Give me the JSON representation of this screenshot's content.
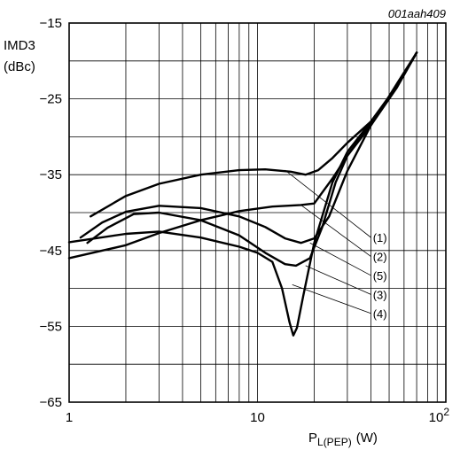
{
  "chart_data": {
    "type": "line",
    "figure_code": "001aah409",
    "ylabel_line1": "IMD3",
    "ylabel_line2": "(dBc)",
    "xlabel_main": "P",
    "xlabel_sub": "L(PEP)",
    "xlabel_unit": "(W)",
    "x_scale": "log",
    "xlim": [
      1,
      100
    ],
    "ylim": [
      -65,
      -15
    ],
    "grid": true,
    "x_ticks": [
      {
        "value": 1,
        "label": "1"
      },
      {
        "value": 10,
        "label": "10"
      },
      {
        "value": 100,
        "label": "10",
        "sup": "2"
      }
    ],
    "y_ticks": [
      {
        "value": -15,
        "label": "−15"
      },
      {
        "value": -25,
        "label": "−25"
      },
      {
        "value": -35,
        "label": "−35"
      },
      {
        "value": -45,
        "label": "−45"
      },
      {
        "value": -55,
        "label": "−55"
      },
      {
        "value": -65,
        "label": "−65"
      }
    ],
    "series": [
      {
        "name": "(1)",
        "points": [
          [
            1.3,
            -40.5
          ],
          [
            2,
            -37.8
          ],
          [
            3,
            -36.2
          ],
          [
            5,
            -35.0
          ],
          [
            8,
            -34.4
          ],
          [
            11,
            -34.3
          ],
          [
            15,
            -34.6
          ],
          [
            18,
            -35.0
          ],
          [
            21,
            -34.4
          ],
          [
            25,
            -32.8
          ],
          [
            30,
            -30.8
          ],
          [
            40,
            -28.0
          ],
          [
            50,
            -24.8
          ],
          [
            60,
            -21.8
          ],
          [
            70,
            -18.9
          ]
        ]
      },
      {
        "name": "(2)",
        "points": [
          [
            1.15,
            -43.3
          ],
          [
            1.5,
            -41.3
          ],
          [
            2,
            -39.9
          ],
          [
            3,
            -39.1
          ],
          [
            5,
            -39.4
          ],
          [
            8,
            -40.5
          ],
          [
            11,
            -41.9
          ],
          [
            14,
            -43.4
          ],
          [
            17,
            -44.0
          ],
          [
            20,
            -43.4
          ],
          [
            24,
            -40.5
          ],
          [
            30,
            -34.5
          ],
          [
            40,
            -28.5
          ],
          [
            55,
            -23.0
          ],
          [
            70,
            -18.9
          ]
        ]
      },
      {
        "name": "(3)",
        "points": [
          [
            1,
            -46.0
          ],
          [
            2,
            -44.3
          ],
          [
            3,
            -42.7
          ],
          [
            5,
            -41.0
          ],
          [
            8,
            -39.8
          ],
          [
            12,
            -39.2
          ],
          [
            17,
            -39.0
          ],
          [
            20,
            -38.8
          ],
          [
            25,
            -35.5
          ],
          [
            30,
            -32.5
          ],
          [
            40,
            -28.5
          ],
          [
            55,
            -23.5
          ],
          [
            70,
            -18.9
          ]
        ]
      },
      {
        "name": "(4)",
        "points": [
          [
            1,
            -43.9
          ],
          [
            2,
            -42.8
          ],
          [
            3,
            -42.5
          ],
          [
            5,
            -43.3
          ],
          [
            8,
            -44.5
          ],
          [
            10,
            -45.3
          ],
          [
            12,
            -46.5
          ],
          [
            13.5,
            -50.0
          ],
          [
            14.8,
            -54.5
          ],
          [
            15.5,
            -56.2
          ],
          [
            16.2,
            -55.2
          ],
          [
            17.5,
            -51.0
          ],
          [
            20,
            -44.0
          ],
          [
            25,
            -36.0
          ],
          [
            30,
            -32.0
          ],
          [
            40,
            -28.0
          ],
          [
            55,
            -23.3
          ],
          [
            70,
            -18.9
          ]
        ]
      },
      {
        "name": "(5)",
        "points": [
          [
            1.25,
            -44.0
          ],
          [
            1.6,
            -42.0
          ],
          [
            2.2,
            -40.2
          ],
          [
            3,
            -40.0
          ],
          [
            5,
            -41.0
          ],
          [
            8,
            -43.0
          ],
          [
            11,
            -45.3
          ],
          [
            14,
            -46.8
          ],
          [
            16,
            -47.0
          ],
          [
            19,
            -46.0
          ],
          [
            22,
            -42.0
          ],
          [
            26,
            -36.0
          ],
          [
            30,
            -32.5
          ],
          [
            40,
            -28.2
          ],
          [
            55,
            -23.2
          ],
          [
            70,
            -18.9
          ]
        ]
      }
    ],
    "callouts": [
      {
        "label": "(1)",
        "anchor": [
          14.0,
          -34.4
        ],
        "text_pos": [
          41,
          -43.3
        ]
      },
      {
        "label": "(2)",
        "anchor": [
          17.0,
          -39.0
        ],
        "text_pos": [
          41,
          -45.8
        ]
      },
      {
        "label": "(5)",
        "anchor": [
          19.0,
          -44.0
        ],
        "text_pos": [
          41,
          -48.3
        ]
      },
      {
        "label": "(3)",
        "anchor": [
          18.0,
          -47.0
        ],
        "text_pos": [
          41,
          -50.8
        ]
      },
      {
        "label": "(4)",
        "anchor": [
          15.3,
          -49.5
        ],
        "text_pos": [
          41,
          -53.3
        ]
      }
    ]
  }
}
